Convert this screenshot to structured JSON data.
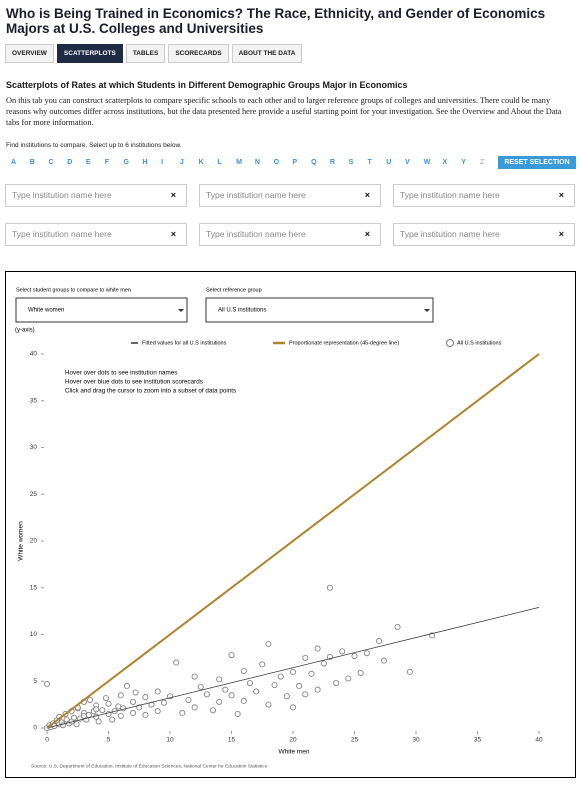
{
  "header": {
    "title": "Who is Being Trained in Economics? The Race, Ethnicity, and Gender of Economics Majors at U.S. Colleges and Universities"
  },
  "tabs": [
    {
      "label": "OVERVIEW",
      "active": false
    },
    {
      "label": "SCATTERPLOTS",
      "active": true
    },
    {
      "label": "TABLES",
      "active": false
    },
    {
      "label": "SCORECARDS",
      "active": false
    },
    {
      "label": "ABOUT THE DATA",
      "active": false
    }
  ],
  "section": {
    "heading": "Scatterplots of Rates at which Students in Different Demographic Groups Major in Economics",
    "paragraph": "On this tab you can construct scatterplots to compare specific schools to each other and to larger reference groups of colleges and universities. There could be many reasons why outcomes differ across institutions, but the data presented here provide a useful starting point for your investigation. See the Overview and About the Data tabs for more information."
  },
  "finder": {
    "instruction": "Find institutions to compare. Select up to 6 institutions below.",
    "letters": [
      {
        "label": "A",
        "enabled": true
      },
      {
        "label": "B",
        "enabled": true
      },
      {
        "label": "C",
        "enabled": true
      },
      {
        "label": "D",
        "enabled": true
      },
      {
        "label": "E",
        "enabled": true
      },
      {
        "label": "F",
        "enabled": true
      },
      {
        "label": "G",
        "enabled": true
      },
      {
        "label": "H",
        "enabled": true
      },
      {
        "label": "I",
        "enabled": true
      },
      {
        "label": "J",
        "enabled": true
      },
      {
        "label": "K",
        "enabled": true
      },
      {
        "label": "L",
        "enabled": true
      },
      {
        "label": "M",
        "enabled": true
      },
      {
        "label": "N",
        "enabled": true
      },
      {
        "label": "O",
        "enabled": true
      },
      {
        "label": "P",
        "enabled": true
      },
      {
        "label": "Q",
        "enabled": true
      },
      {
        "label": "R",
        "enabled": true
      },
      {
        "label": "S",
        "enabled": true
      },
      {
        "label": "T",
        "enabled": true
      },
      {
        "label": "U",
        "enabled": true
      },
      {
        "label": "V",
        "enabled": true
      },
      {
        "label": "W",
        "enabled": true
      },
      {
        "label": "X",
        "enabled": true
      },
      {
        "label": "Y",
        "enabled": true
      },
      {
        "label": "Z",
        "enabled": false
      }
    ],
    "reset_button": "RESET SELECTION",
    "inputs": [
      {
        "placeholder": "Type institution name here",
        "clear": "×"
      },
      {
        "placeholder": "Type institution name here",
        "clear": "×"
      },
      {
        "placeholder": "Type institution name here",
        "clear": "×"
      },
      {
        "placeholder": "Type institution name here",
        "clear": "×"
      },
      {
        "placeholder": "Type institution name here",
        "clear": "×"
      },
      {
        "placeholder": "Type institution name here",
        "clear": "×"
      }
    ]
  },
  "controls": {
    "group_label": "Select student groups to compare to white men",
    "group_value": "White women",
    "reference_label": "Select reference group",
    "reference_value": "All U.S institutions"
  },
  "chart_data": {
    "type": "scatter",
    "y_axis_note": "(y-axis)",
    "xlabel": "White men",
    "ylabel": "White women",
    "annotations": [
      "Hover over dots to see institution names",
      "Hover over blue dots to see institution scorecards",
      "Click and drag the cursor to zoom into a subset of data points"
    ],
    "source": "Source: U.S. Department of Education, Institute of Education Sciences, National Center for Education Statistics",
    "xlim": [
      0,
      40
    ],
    "ylim": [
      0,
      40
    ],
    "xticks": [
      0,
      5,
      10,
      15,
      20,
      25,
      30,
      35,
      40
    ],
    "yticks": [
      0,
      5,
      10,
      15,
      20,
      25,
      30,
      35,
      40
    ],
    "series": [
      {
        "name": "Fitted values for all U.S institutions",
        "kind": "line",
        "color": "#333333",
        "x": [
          0,
          40
        ],
        "values": [
          0,
          12.9
        ]
      },
      {
        "name": "Proportionate representation (45-degree line)",
        "kind": "line",
        "color": "#b0832b",
        "x": [
          0,
          40
        ],
        "values": [
          0,
          40
        ]
      },
      {
        "name": "All U.S institutions",
        "kind": "points",
        "color": "#777777",
        "x": [
          0,
          0.2,
          0.3,
          0.5,
          0.6,
          0.8,
          1,
          1,
          1.2,
          1.3,
          1.5,
          1.6,
          1.8,
          2,
          2,
          2.2,
          2.4,
          2.5,
          2.7,
          3,
          3,
          3.2,
          3.4,
          3.5,
          3.8,
          4,
          4,
          4.2,
          4.5,
          4.8,
          5,
          5,
          5.3,
          5.5,
          5.8,
          6,
          6,
          6.2,
          6.5,
          7,
          7,
          7.2,
          7.5,
          8,
          8,
          8.5,
          9,
          9,
          9.5,
          10,
          10.5,
          11,
          11.5,
          12,
          12,
          12.5,
          13,
          13.5,
          14,
          14,
          14.5,
          15,
          15,
          15.5,
          16,
          16,
          16.5,
          17,
          17.5,
          18,
          18,
          18.5,
          19,
          19.5,
          20,
          20,
          20.5,
          21,
          21,
          21.5,
          22,
          22,
          22.5,
          23,
          23,
          23.5,
          24,
          24.5,
          25,
          25.5,
          26,
          27,
          27.4,
          28.5,
          29.5,
          31.3,
          0,
          4,
          2.5,
          3
        ],
        "values": [
          0,
          0.3,
          0.1,
          0.5,
          0.2,
          0.8,
          0.4,
          1.2,
          0.6,
          0.3,
          1.5,
          0.9,
          0.5,
          1.8,
          0.7,
          1.1,
          0.4,
          2.1,
          1,
          1.6,
          2.8,
          0.9,
          1.4,
          3,
          1.8,
          1.2,
          2.4,
          0.7,
          1.9,
          3.2,
          1.5,
          2.6,
          0.9,
          1.8,
          2.3,
          3.5,
          1.3,
          2.1,
          4.5,
          2.8,
          1.6,
          3.8,
          2.2,
          3.3,
          1.4,
          2.5,
          3.9,
          1.8,
          2.7,
          3.4,
          7,
          1.6,
          3,
          5.5,
          2.2,
          4.4,
          3.6,
          1.9,
          5.2,
          2.8,
          4.1,
          7.8,
          3.5,
          1.5,
          6.1,
          2.9,
          4.8,
          3.9,
          6.8,
          9,
          2.5,
          4.6,
          5.5,
          3.4,
          6,
          2.2,
          4.5,
          7.5,
          3.6,
          5.8,
          8.5,
          4.1,
          6.9,
          15,
          7.6,
          4.8,
          8.2,
          5.3,
          7.7,
          5.9,
          8,
          9.3,
          7.2,
          10.8,
          6,
          9.9,
          4.7,
          2,
          2.2,
          1.3
        ]
      }
    ]
  }
}
